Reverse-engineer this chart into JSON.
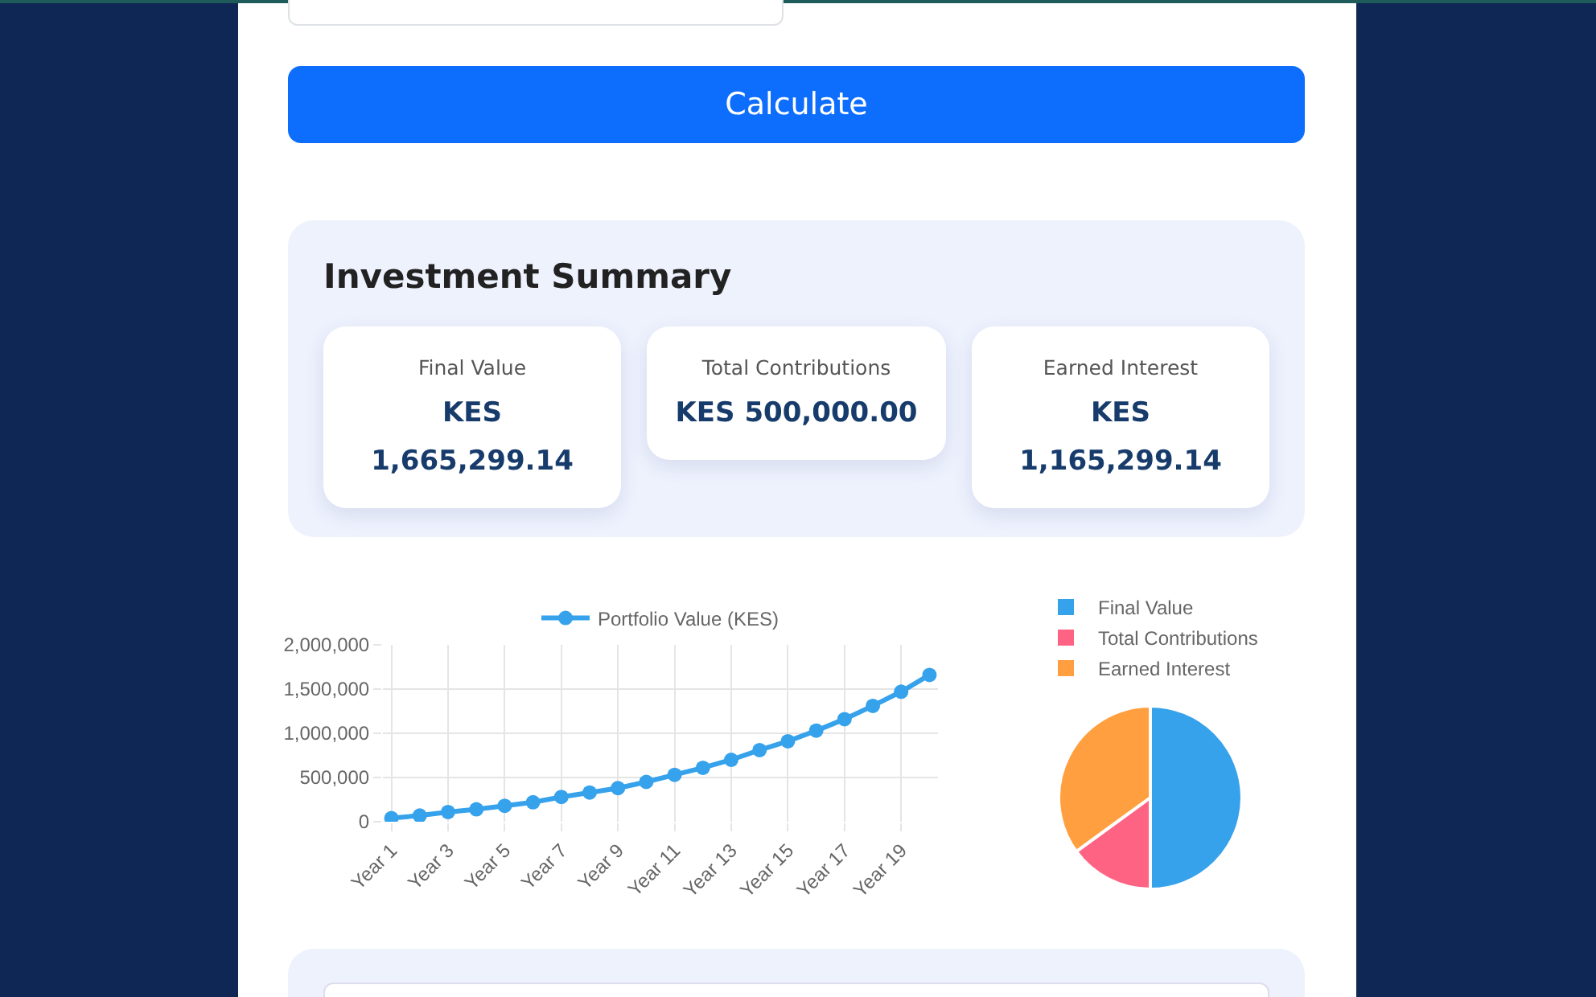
{
  "chart_data": [
    {
      "type": "other",
      "title": "Investment Summary",
      "annotations": [
        "Calculate",
        "Final Value",
        "KES 1,665,299.14",
        "Total Contributions",
        "KES 500,000.00",
        "Earned Interest",
        "KES 1,165,299.14"
      ]
    },
    {
      "type": "line",
      "categories": [
        "Year 1",
        null,
        "Year 3",
        null,
        "Year 5",
        null,
        "Year 7",
        null,
        "Year 9",
        null,
        "Year 11",
        null,
        "Year 13",
        null,
        "Year 15",
        null,
        "Year 17",
        null,
        "Year 19",
        null
      ],
      "series": [
        {
          "name": "Portfolio Value (KES)",
          "color": "#36a2eb",
          "values": [
            40000,
            70000,
            110000,
            140000,
            180000,
            220000,
            280000,
            330000,
            380000,
            450000,
            530000,
            610000,
            700000,
            810000,
            910000,
            1030000,
            1160000,
            1310000,
            1470000,
            1660000
          ]
        }
      ],
      "ylim": [
        0,
        2000000
      ],
      "yticks": [
        0,
        {
          "value": 500000,
          "label": "500,000"
        },
        {
          "value": 1000000,
          "label": "1,000,000"
        },
        {
          "value": 1500000,
          "label": "1,500,000"
        },
        {
          "value": 2000000,
          "label": "2,000,000"
        }
      ],
      "grid": true,
      "legend": "top",
      "marker": "circle",
      "line_style": "solid"
    },
    {
      "type": "pie",
      "categories": [
        "Final Value",
        "Total Contributions",
        "Earned Interest"
      ],
      "values": [
        50,
        15,
        35
      ],
      "colors": [
        "#36a2eb",
        "#ff6384",
        "#ff9f40"
      ],
      "legend": "top"
    }
  ]
}
